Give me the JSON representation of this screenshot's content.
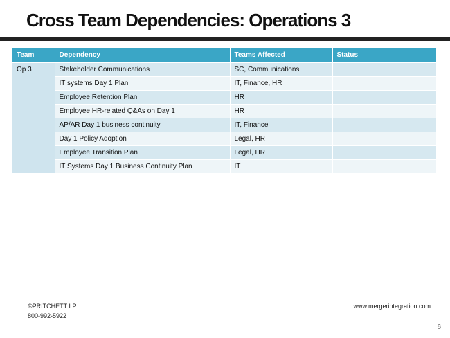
{
  "slide": {
    "title": "Cross Team Dependencies: Operations  3",
    "page_number": "6"
  },
  "table": {
    "headers": [
      "Team",
      "Dependency",
      "Teams Affected",
      "Status"
    ],
    "team": "Op 3",
    "rows": [
      {
        "dependency": "Stakeholder Communications",
        "teams_affected": "SC, Communications",
        "status": ""
      },
      {
        "dependency": "IT systems Day 1 Plan",
        "teams_affected": "IT, Finance, HR",
        "status": ""
      },
      {
        "dependency": "Employee Retention Plan",
        "teams_affected": "HR",
        "status": ""
      },
      {
        "dependency": "Employee HR-related Q&As on Day 1",
        "teams_affected": "HR",
        "status": ""
      },
      {
        "dependency": "AP/AR Day 1 business continuity",
        "teams_affected": "IT, Finance",
        "status": ""
      },
      {
        "dependency": "Day 1 Policy Adoption",
        "teams_affected": "Legal, HR",
        "status": ""
      },
      {
        "dependency": "Employee Transition Plan",
        "teams_affected": "Legal, HR",
        "status": ""
      },
      {
        "dependency": "IT Systems Day 1 Business Continuity Plan",
        "teams_affected": "IT",
        "status": ""
      }
    ]
  },
  "footer": {
    "copyright": "©PRITCHETT LP",
    "phone": "800-992-5922",
    "website": "www.mergerintegration.com"
  },
  "colors": {
    "header_bg": "#3aa6c6",
    "row_shade": "#d6e8f0",
    "row_plain": "#eef5f8"
  }
}
